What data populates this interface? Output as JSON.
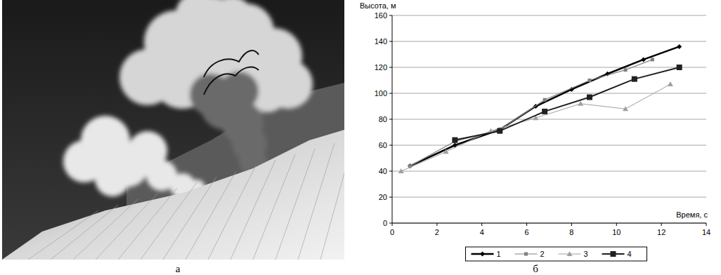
{
  "chart_data": {
    "type": "line",
    "y_label": "Высота, м",
    "x_label": "Время, с",
    "xlim": [
      0,
      14
    ],
    "xticks": [
      0,
      2,
      4,
      6,
      8,
      10,
      12,
      14
    ],
    "ylim": [
      0,
      160
    ],
    "yticks": [
      0,
      20,
      40,
      60,
      80,
      100,
      120,
      140,
      160
    ],
    "grid": true,
    "legend": "bottom",
    "series": [
      {
        "name": "1",
        "color": "#000000",
        "marker": "diamond",
        "line_style": "solid",
        "x": [
          0.8,
          2.8,
          4.8,
          6.4,
          8.0,
          9.6,
          11.2,
          12.8
        ],
        "values": [
          44,
          60,
          72,
          90,
          103,
          115,
          126,
          136
        ]
      },
      {
        "name": "2",
        "color": "#808080",
        "marker": "square",
        "line_style": "solid",
        "x": [
          0.8,
          2.8,
          4.8,
          6.8,
          8.8,
          10.4,
          11.6
        ],
        "values": [
          44,
          63,
          72,
          95,
          110,
          118,
          126
        ]
      },
      {
        "name": "3",
        "color": "#a0a0a0",
        "marker": "triangle",
        "line_style": "solid",
        "x": [
          0.4,
          2.4,
          4.4,
          6.4,
          8.4,
          10.4,
          12.4
        ],
        "values": [
          40,
          55,
          71,
          81,
          92,
          88,
          107
        ]
      },
      {
        "name": "4",
        "color": "#202020",
        "marker": "big-square",
        "line_style": "solid",
        "x": [
          2.8,
          4.8,
          6.8,
          8.8,
          10.8,
          12.8
        ],
        "values": [
          64,
          71,
          86,
          97,
          111,
          120
        ]
      }
    ]
  },
  "panel_labels": {
    "photo": "а",
    "chart": "б"
  }
}
